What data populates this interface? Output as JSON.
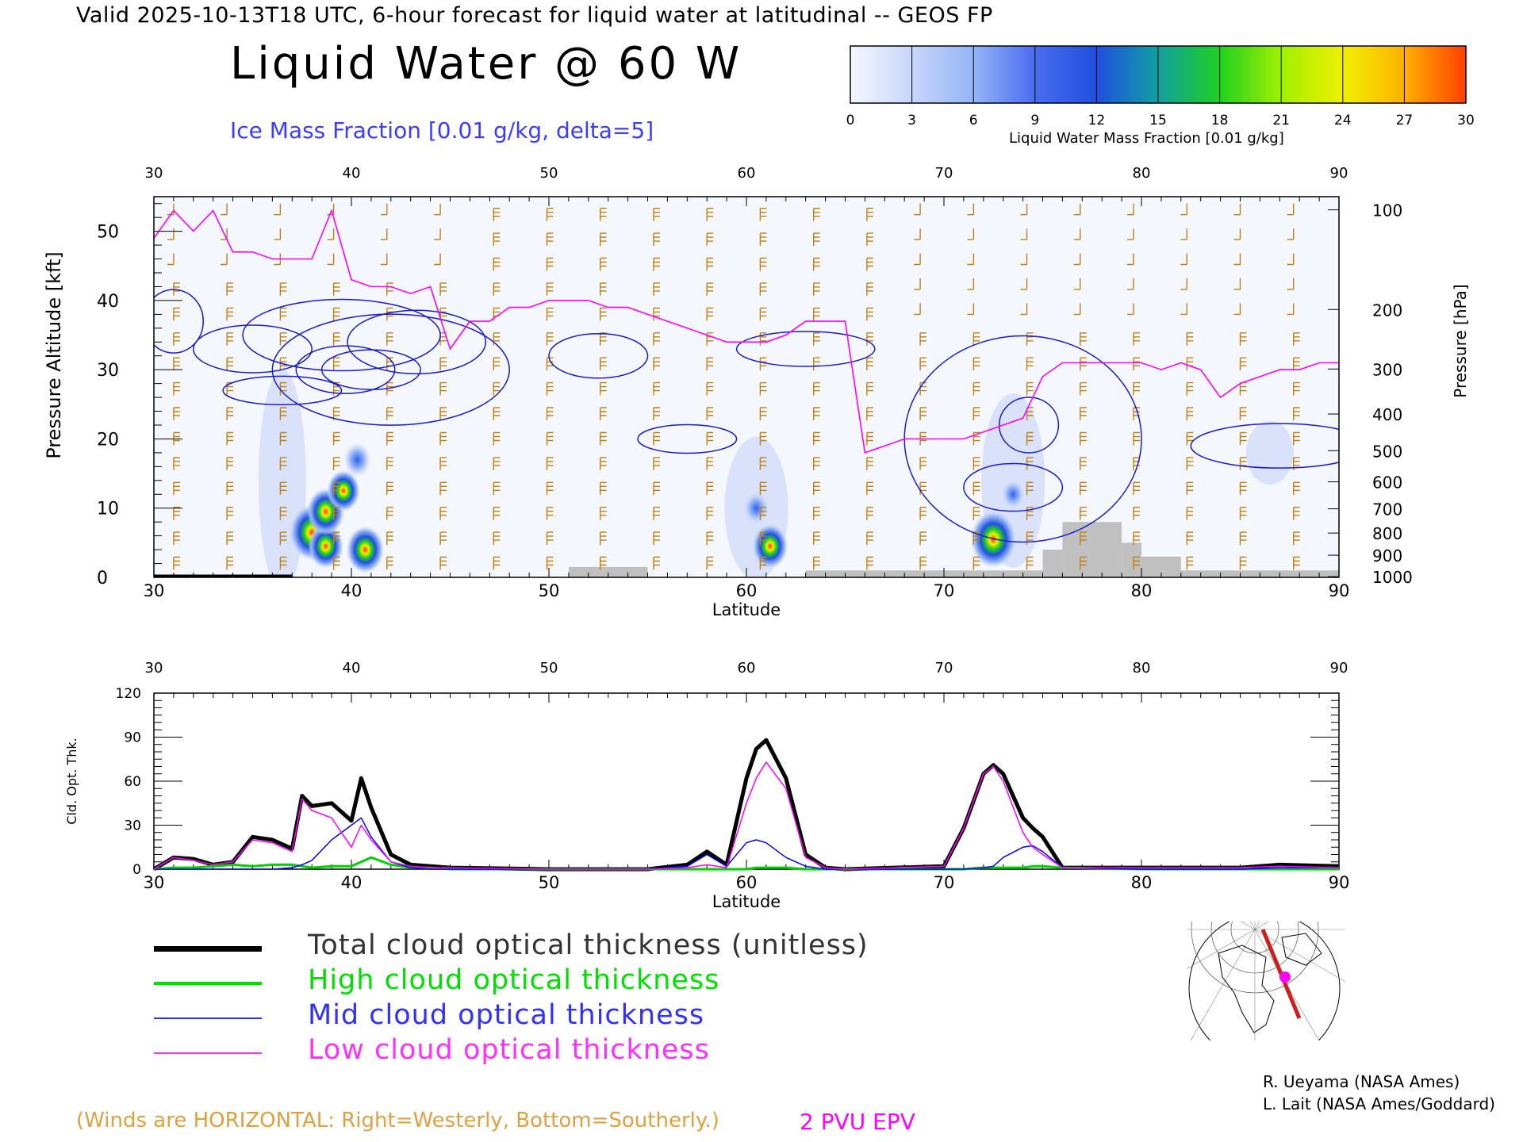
{
  "header": {
    "valid_line": "Valid 2025-10-13T18 UTC, 6-hour forecast for liquid water at latitudinal -- GEOS FP",
    "title": "Liquid Water @ 60 W",
    "ice_label": "Ice Mass Fraction [0.01 g/kg, delta=5]"
  },
  "colorbar": {
    "ticks": [
      "0",
      "3",
      "6",
      "9",
      "12",
      "15",
      "18",
      "21",
      "24",
      "27",
      "30"
    ],
    "label": "Liquid Water Mass Fraction [0.01 g/kg]",
    "colors": [
      "#f4f6fe",
      "#c8d6fa",
      "#94b4f6",
      "#4a6cf0",
      "#2050e0",
      "#10a0a0",
      "#20d020",
      "#a0f000",
      "#f0f000",
      "#ffb000",
      "#ff4000"
    ]
  },
  "chart_data": [
    {
      "type": "heatmap",
      "title": "Liquid Water @ 60 W",
      "xlabel": "Latitude",
      "ylabel": "Pressure Altitude [kft]",
      "y2label": "Pressure [hPa]",
      "xlim": [
        30,
        90
      ],
      "ylim": [
        0,
        55
      ],
      "x_ticks": [
        "30",
        "40",
        "50",
        "60",
        "70",
        "80",
        "90"
      ],
      "y_ticks": [
        "0",
        "10",
        "20",
        "30",
        "40",
        "50"
      ],
      "pressure_ticks": [
        "100",
        "200",
        "300",
        "400",
        "500",
        "600",
        "700",
        "800",
        "900",
        "1000"
      ],
      "pressure_tick_kft": [
        53.1,
        38.7,
        30.1,
        23.6,
        18.3,
        13.8,
        9.9,
        6.4,
        3.2,
        0.1
      ],
      "liquid_water_blobs": [
        {
          "lat": 38.0,
          "kft": 6.5,
          "value": 28
        },
        {
          "lat": 38.7,
          "kft": 4.5,
          "value": 20
        },
        {
          "lat": 38.7,
          "kft": 9.5,
          "value": 22
        },
        {
          "lat": 39.6,
          "kft": 12.5,
          "value": 18
        },
        {
          "lat": 40.3,
          "kft": 17.0,
          "value": 13
        },
        {
          "lat": 40.7,
          "kft": 4.0,
          "value": 22
        },
        {
          "lat": 61.2,
          "kft": 4.5,
          "value": 20
        },
        {
          "lat": 60.5,
          "kft": 10.0,
          "value": 11
        },
        {
          "lat": 72.5,
          "kft": 5.5,
          "value": 29
        },
        {
          "lat": 73.5,
          "kft": 12.0,
          "value": 9
        }
      ],
      "epv_2pvu_line": {
        "lat": [
          30,
          31,
          32,
          33,
          34,
          35,
          36,
          37,
          38,
          39,
          40,
          41,
          42,
          43,
          44,
          45,
          46,
          47,
          48,
          49,
          50,
          51,
          52,
          53,
          54,
          55,
          56,
          57,
          58,
          59,
          60,
          61,
          62,
          63,
          64,
          65,
          66,
          67,
          68,
          69,
          70,
          71,
          72,
          73,
          74,
          75,
          76,
          77,
          78,
          79,
          80,
          81,
          82,
          83,
          84,
          85,
          86,
          87,
          88,
          89,
          90
        ],
        "kft": [
          49,
          53,
          50,
          53,
          47,
          47,
          46,
          46,
          46,
          53,
          43,
          42,
          42,
          41,
          42,
          33,
          37,
          37,
          39,
          39,
          40,
          40,
          40,
          39,
          39,
          38,
          37,
          36,
          35,
          34,
          34,
          34,
          35,
          37,
          37,
          37,
          18,
          19,
          20,
          20,
          20,
          20,
          21,
          22,
          23,
          29,
          31,
          31,
          31,
          31,
          31,
          30,
          31,
          30,
          26,
          28,
          29,
          30,
          30,
          31,
          31
        ]
      },
      "terrain": [
        {
          "lat": [
            30,
            37
          ],
          "kft": 0.4
        },
        {
          "lat": [
            51,
            55
          ],
          "kft": 1.5
        },
        {
          "lat": [
            63,
            75
          ],
          "kft": 1.0
        },
        {
          "lat": [
            75,
            76
          ],
          "kft": 4.0
        },
        {
          "lat": [
            76,
            79
          ],
          "kft": 8.0
        },
        {
          "lat": [
            79,
            80
          ],
          "kft": 5.0
        },
        {
          "lat": [
            80,
            82
          ],
          "kft": 3.0
        },
        {
          "lat": [
            82,
            90
          ],
          "kft": 1.0
        }
      ]
    },
    {
      "type": "line",
      "xlabel": "Latitude",
      "ylabel": "Cld. Opt. Thk.",
      "xlim": [
        30,
        90
      ],
      "ylim": [
        0,
        120
      ],
      "x_ticks": [
        "30",
        "40",
        "50",
        "60",
        "70",
        "80",
        "90"
      ],
      "y_ticks": [
        "0",
        "30",
        "60",
        "90",
        "120"
      ],
      "x": [
        30,
        31,
        32,
        33,
        34,
        35,
        36,
        37,
        37.5,
        38,
        39,
        40,
        40.5,
        41,
        42,
        43,
        44,
        45,
        50,
        55,
        57,
        58,
        59,
        60,
        60.5,
        61,
        62,
        63,
        64,
        65,
        70,
        71,
        72,
        72.5,
        73,
        74,
        74.5,
        75,
        76,
        80,
        85,
        87,
        90
      ],
      "series": [
        {
          "name": "Total cloud optical thickness (unitless)",
          "color": "#000000",
          "width": 5,
          "values": [
            0,
            8,
            7,
            3,
            5,
            22,
            20,
            14,
            50,
            43,
            45,
            33,
            62,
            42,
            10,
            3,
            2,
            1,
            0,
            0,
            3,
            12,
            3,
            62,
            82,
            88,
            62,
            10,
            1,
            0,
            2,
            28,
            65,
            71,
            65,
            35,
            28,
            22,
            1,
            1,
            1,
            3,
            2
          ]
        },
        {
          "name": "High cloud optical thickness",
          "color": "#00d000",
          "width": 3,
          "values": [
            0,
            1,
            1,
            2,
            3,
            2,
            3,
            3,
            2,
            1,
            2,
            2,
            5,
            8,
            3,
            1,
            1,
            0,
            0,
            0,
            0,
            0,
            0,
            0,
            1,
            1,
            1,
            0,
            0,
            0,
            0,
            0,
            1,
            1,
            1,
            1,
            2,
            2,
            1,
            0,
            0,
            0,
            0
          ]
        },
        {
          "name": "Mid cloud optical thickness",
          "color": "#0000ff",
          "width": 1.5,
          "values": [
            0,
            0,
            0,
            0,
            0,
            0,
            0,
            1,
            3,
            6,
            20,
            30,
            35,
            22,
            5,
            1,
            0,
            0,
            0,
            0,
            2,
            10,
            2,
            18,
            20,
            18,
            8,
            2,
            0,
            0,
            0,
            0,
            1,
            2,
            8,
            15,
            16,
            12,
            1,
            0,
            0,
            1,
            1
          ]
        },
        {
          "name": "Low cloud optical thickness",
          "color": "#ff00ff",
          "width": 1.5,
          "values": [
            0,
            8,
            6,
            3,
            5,
            20,
            18,
            12,
            48,
            40,
            35,
            15,
            30,
            20,
            5,
            2,
            1,
            1,
            0,
            0,
            1,
            3,
            1,
            45,
            62,
            73,
            55,
            8,
            1,
            0,
            2,
            28,
            65,
            70,
            60,
            25,
            15,
            10,
            1,
            1,
            1,
            2,
            1
          ]
        }
      ]
    }
  ],
  "legend": [
    {
      "label": "Total cloud optical thickness (unitless)",
      "color": "#000000",
      "width": 7
    },
    {
      "label": "High cloud optical thickness",
      "color": "#00e000",
      "width": 4
    },
    {
      "label": "Mid cloud optical thickness",
      "color": "#3030ff",
      "width": 2
    },
    {
      "label": "Low cloud optical thickness",
      "color": "#ff30ff",
      "width": 2
    }
  ],
  "credits": [
    "R. Ueyama (NASA Ames)",
    "L. Lait (NASA Ames/Goddard)"
  ],
  "footer": {
    "winds_note": "(Winds are HORIZONTAL: Right=Westerly, Bottom=Southerly.)",
    "pvu_note": "2 PVU EPV"
  },
  "colors": {
    "ice_contour": "#1a1ad0",
    "wind_barb": "#c08010",
    "epv": "#ff00ff",
    "terrain": "#c0c0c0",
    "track": "#cc2020",
    "marker": "#ff00ff"
  },
  "inset_map": {
    "icon": "polar-projection-map-icon"
  }
}
